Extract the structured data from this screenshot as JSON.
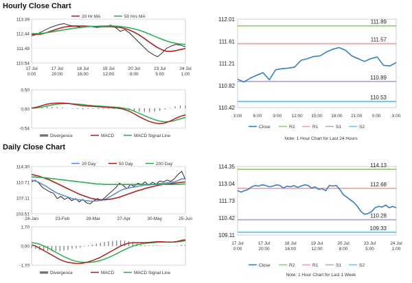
{
  "sections": [
    {
      "title": "Hourly Close Chart"
    },
    {
      "title": "Daily Close Chart"
    }
  ],
  "colors": {
    "close": "#2f7fc6",
    "r2": "#8fd16a",
    "r1": "#f2a6a6",
    "s1": "#b7a6d8",
    "s2": "#6cc7e6",
    "ma_short": "#b01e1e",
    "ma_long": "#28b04a",
    "ma_mid": "#5b8fd6",
    "price": "#111111",
    "divergence": "#777777"
  },
  "chart_data": [
    {
      "id": "hourly_price",
      "type": "line",
      "legend": [
        "20 Hr MA",
        "50 Hrs MA"
      ],
      "y_ticks": [
        "113.39",
        "112.44",
        "111.49",
        "110.54"
      ],
      "ylim": [
        110.54,
        113.39
      ],
      "x_ticks": [
        [
          "17 Jul",
          "0:00"
        ],
        [
          "17 Jul",
          "20:00"
        ],
        [
          "18 Jul",
          "16:00"
        ],
        [
          "19 Jul",
          "12:00"
        ],
        [
          "20 Jul",
          "8:00"
        ],
        [
          "23 Jul",
          "5:00"
        ],
        [
          "24 Jul",
          "1:00"
        ]
      ],
      "series": [
        {
          "name": "Price",
          "values": [
            112.3,
            112.4,
            112.55,
            112.7,
            112.85,
            112.95,
            113.05,
            113.1,
            113.0,
            112.95,
            112.9,
            112.85,
            112.95,
            112.9,
            112.85,
            112.9,
            112.95,
            113.0,
            112.85,
            112.6,
            112.7,
            112.5,
            112.2,
            111.9,
            111.6,
            111.3,
            111.1,
            110.95,
            111.2,
            111.5,
            111.65,
            111.75,
            111.7,
            111.6
          ]
        },
        {
          "name": "20 Hr MA",
          "values": [
            112.4,
            112.4,
            112.42,
            112.5,
            112.6,
            112.7,
            112.8,
            112.88,
            112.92,
            112.95,
            112.95,
            112.95,
            112.93,
            112.92,
            112.9,
            112.9,
            112.9,
            112.9,
            112.88,
            112.85,
            112.78,
            112.68,
            112.55,
            112.38,
            112.18,
            111.95,
            111.75,
            111.55,
            111.4,
            111.3,
            111.3,
            111.35,
            111.42,
            111.48
          ]
        },
        {
          "name": "50 Hrs MA",
          "values": [
            112.45,
            112.45,
            112.47,
            112.5,
            112.55,
            112.6,
            112.65,
            112.7,
            112.75,
            112.8,
            112.84,
            112.87,
            112.9,
            112.92,
            112.93,
            112.94,
            112.95,
            112.95,
            112.94,
            112.92,
            112.88,
            112.83,
            112.76,
            112.68,
            112.58,
            112.46,
            112.33,
            112.2,
            112.08,
            111.97,
            111.88,
            111.82,
            111.78,
            111.75
          ]
        }
      ]
    },
    {
      "id": "hourly_macd",
      "type": "line",
      "legend": [
        "Divergence",
        "MACD",
        "MACD Signal Line"
      ],
      "y_ticks": [
        "0.50",
        "0.00",
        "-0.54"
      ],
      "ylim": [
        -0.54,
        0.5
      ],
      "series": [
        {
          "name": "MACD",
          "values": [
            0.0,
            0.03,
            0.07,
            0.11,
            0.13,
            0.14,
            0.14,
            0.13,
            0.11,
            0.09,
            0.07,
            0.06,
            0.05,
            0.04,
            0.03,
            0.02,
            0.01,
            0.0,
            -0.03,
            -0.08,
            -0.15,
            -0.23,
            -0.3,
            -0.36,
            -0.4,
            -0.42,
            -0.4,
            -0.35,
            -0.28,
            -0.22,
            -0.18
          ]
        },
        {
          "name": "MACD Signal Line",
          "values": [
            0.0,
            0.01,
            0.03,
            0.06,
            0.09,
            0.11,
            0.12,
            0.13,
            0.12,
            0.11,
            0.1,
            0.08,
            0.07,
            0.06,
            0.05,
            0.04,
            0.03,
            0.02,
            0.0,
            -0.03,
            -0.08,
            -0.14,
            -0.2,
            -0.26,
            -0.31,
            -0.35,
            -0.37,
            -0.36,
            -0.33,
            -0.29,
            -0.25
          ]
        },
        {
          "name": "Divergence",
          "values": [
            0.0,
            0.02,
            0.04,
            0.05,
            0.04,
            0.03,
            0.02,
            0.0,
            -0.01,
            -0.02,
            -0.03,
            -0.02,
            -0.02,
            -0.02,
            -0.02,
            -0.02,
            -0.02,
            -0.02,
            -0.03,
            -0.05,
            -0.07,
            -0.09,
            -0.1,
            -0.1,
            -0.09,
            -0.07,
            -0.03,
            0.01,
            0.05,
            0.07,
            0.07
          ]
        }
      ]
    },
    {
      "id": "hourly_levels",
      "type": "line",
      "legend": [
        "Close",
        "R2",
        "R1",
        "S1",
        "S2"
      ],
      "note": "Note: 1 Hour Chart for Last 24 Hours",
      "y_ticks": [
        "112.01",
        "111.61",
        "111.21",
        "110.82",
        "110.42"
      ],
      "ylim": [
        110.42,
        112.01
      ],
      "x_ticks": [
        "3:00",
        "6:00",
        "9:00",
        "12:00",
        "15:00",
        "18:00",
        "21:00",
        "0:00",
        "3:00"
      ],
      "levels": [
        {
          "name": "R2",
          "value": 111.89,
          "label": "111.89"
        },
        {
          "name": "R1",
          "value": 111.57,
          "label": "111.57"
        },
        {
          "name": "S1",
          "value": 110.89,
          "label": "110.89"
        },
        {
          "name": "S2",
          "value": 110.53,
          "label": "110.53"
        }
      ],
      "close": [
        110.93,
        110.88,
        110.95,
        111.0,
        111.05,
        110.92,
        111.1,
        111.12,
        111.13,
        111.15,
        111.27,
        111.3,
        111.34,
        111.35,
        111.42,
        111.47,
        111.5,
        111.45,
        111.35,
        111.3,
        111.25,
        111.3,
        111.33,
        111.18,
        111.17,
        111.23
      ]
    },
    {
      "id": "daily_price",
      "type": "line",
      "legend": [
        "20 Day",
        "50 Day",
        "200 Day"
      ],
      "y_ticks": [
        "114.30",
        "110.71",
        "107.11",
        "103.51"
      ],
      "ylim": [
        103.51,
        114.3
      ],
      "x_ticks": [
        "24-Jan",
        "23-Feb",
        "28-Mar",
        "27-Apr",
        "30-May",
        "25-Jun"
      ],
      "series": [
        {
          "name": "Price",
          "values": [
            110.8,
            111.2,
            110.5,
            109.5,
            109.0,
            108.5,
            108.2,
            107.0,
            107.5,
            106.8,
            107.2,
            106.5,
            107.0,
            106.2,
            106.8,
            106.0,
            105.8,
            106.5,
            107.0,
            106.5,
            107.2,
            108.0,
            108.7,
            109.5,
            110.5,
            110.0,
            109.2,
            110.2,
            109.8,
            110.5,
            110.2,
            110.8,
            110.0,
            110.7,
            110.3,
            111.0,
            110.8,
            111.2,
            110.9,
            111.5,
            112.5,
            113.2,
            111.3
          ]
        },
        {
          "name": "20 Day",
          "values": [
            111.2,
            111.0,
            110.7,
            110.2,
            109.8,
            109.2,
            108.7,
            108.2,
            107.9,
            107.6,
            107.3,
            107.0,
            106.8,
            106.7,
            106.6,
            106.5,
            106.4,
            106.4,
            106.5,
            106.6,
            106.8,
            107.2,
            107.7,
            108.2,
            108.7,
            109.1,
            109.3,
            109.5,
            109.6,
            109.8,
            109.9,
            110.1,
            110.1,
            110.2,
            110.3,
            110.4,
            110.5,
            110.6,
            110.7,
            110.8,
            111.1,
            111.5,
            111.4
          ]
        },
        {
          "name": "50 Day",
          "values": [
            112.5,
            112.3,
            112.1,
            111.8,
            111.5,
            111.2,
            110.8,
            110.4,
            110.0,
            109.6,
            109.2,
            108.8,
            108.4,
            108.0,
            107.7,
            107.4,
            107.1,
            106.9,
            106.8,
            106.7,
            106.7,
            106.8,
            106.9,
            107.1,
            107.3,
            107.6,
            107.9,
            108.2,
            108.5,
            108.8,
            109.0,
            109.3,
            109.5,
            109.7,
            109.9,
            110.1,
            110.2,
            110.3,
            110.4,
            110.5,
            110.6,
            110.7,
            110.8
          ]
        },
        {
          "name": "200 Day",
          "values": [
            111.9,
            111.9,
            111.8,
            111.8,
            111.7,
            111.6,
            111.5,
            111.4,
            111.3,
            111.2,
            111.1,
            111.0,
            110.9,
            110.8,
            110.7,
            110.6,
            110.5,
            110.4,
            110.3,
            110.3,
            110.2,
            110.2,
            110.2,
            110.2,
            110.2,
            110.2,
            110.2,
            110.2,
            110.2,
            110.2,
            110.2,
            110.2,
            110.2,
            110.2,
            110.2,
            110.2,
            110.2,
            110.2,
            110.2,
            110.2,
            110.2,
            110.3,
            110.3
          ]
        }
      ]
    },
    {
      "id": "daily_macd",
      "type": "line",
      "legend": [
        "Divergence",
        "MACD",
        "MACD Signal Line"
      ],
      "y_ticks": [
        "1.70",
        "0.00",
        "-1.70"
      ],
      "ylim": [
        -1.7,
        1.7
      ],
      "series": [
        {
          "name": "MACD",
          "values": [
            0.1,
            0.0,
            -0.2,
            -0.4,
            -0.6,
            -0.8,
            -1.0,
            -1.2,
            -1.35,
            -1.45,
            -1.5,
            -1.55,
            -1.55,
            -1.5,
            -1.4,
            -1.3,
            -1.15,
            -1.0,
            -0.8,
            -0.6,
            -0.4,
            -0.2,
            0.0,
            0.15,
            0.25,
            0.3,
            0.3,
            0.3,
            0.3,
            0.32,
            0.35,
            0.38,
            0.38,
            0.36,
            0.34,
            0.35,
            0.4,
            0.5,
            0.55
          ]
        },
        {
          "name": "MACD Signal Line",
          "values": [
            0.3,
            0.25,
            0.15,
            0.0,
            -0.15,
            -0.35,
            -0.55,
            -0.75,
            -0.95,
            -1.1,
            -1.25,
            -1.35,
            -1.42,
            -1.46,
            -1.46,
            -1.43,
            -1.37,
            -1.28,
            -1.16,
            -1.02,
            -0.86,
            -0.68,
            -0.5,
            -0.32,
            -0.16,
            -0.02,
            0.1,
            0.18,
            0.23,
            0.27,
            0.3,
            0.33,
            0.35,
            0.35,
            0.35,
            0.35,
            0.37,
            0.41,
            0.46
          ]
        },
        {
          "name": "Divergence",
          "values": [
            -0.2,
            -0.25,
            -0.35,
            -0.4,
            -0.45,
            -0.45,
            -0.45,
            -0.45,
            -0.4,
            -0.35,
            -0.25,
            -0.2,
            -0.13,
            -0.04,
            0.06,
            0.13,
            0.22,
            0.28,
            0.36,
            0.42,
            0.46,
            0.48,
            0.5,
            0.47,
            0.41,
            0.32,
            0.2,
            0.12,
            0.07,
            0.05,
            0.05,
            0.05,
            0.03,
            0.01,
            -0.01,
            0.0,
            0.03,
            0.09,
            0.09
          ]
        }
      ]
    },
    {
      "id": "daily_levels",
      "type": "line",
      "legend": [
        "Close",
        "R2",
        "R1",
        "S1",
        "S2"
      ],
      "note": "Note: 1 Hour Chart for Last 1 Week",
      "y_ticks": [
        "114.35",
        "113.04",
        "111.73",
        "110.42",
        "109.11"
      ],
      "ylim": [
        109.11,
        114.35
      ],
      "x_ticks": [
        [
          "17 Jul",
          "0:00"
        ],
        [
          "17 Jul",
          "20:00"
        ],
        [
          "18 Jul",
          "16:00"
        ],
        [
          "19 Jul",
          "12:00"
        ],
        [
          "20 Jul",
          "8:00"
        ],
        [
          "23 Jul",
          "5:00"
        ],
        [
          "24 Jul",
          "1:00"
        ]
      ],
      "levels": [
        {
          "name": "R2",
          "value": 114.13,
          "label": "114.13"
        },
        {
          "name": "R1",
          "value": 112.68,
          "label": "112.68"
        },
        {
          "name": "S1",
          "value": 110.28,
          "label": "110.28"
        },
        {
          "name": "S2",
          "value": 109.33,
          "label": "109.33"
        }
      ],
      "close": [
        112.5,
        112.4,
        112.5,
        112.6,
        112.8,
        112.9,
        112.85,
        112.95,
        112.9,
        112.8,
        112.85,
        112.95,
        112.9,
        112.7,
        112.85,
        112.8,
        112.9,
        112.75,
        112.85,
        112.95,
        112.9,
        112.7,
        112.8,
        112.6,
        112.65,
        112.5,
        112.9,
        112.85,
        112.9,
        112.6,
        112.2,
        112.0,
        111.8,
        111.6,
        111.3,
        110.9,
        110.7,
        110.75,
        110.9,
        111.2,
        111.3,
        111.25,
        111.4,
        111.2,
        111.3,
        111.2
      ]
    }
  ]
}
